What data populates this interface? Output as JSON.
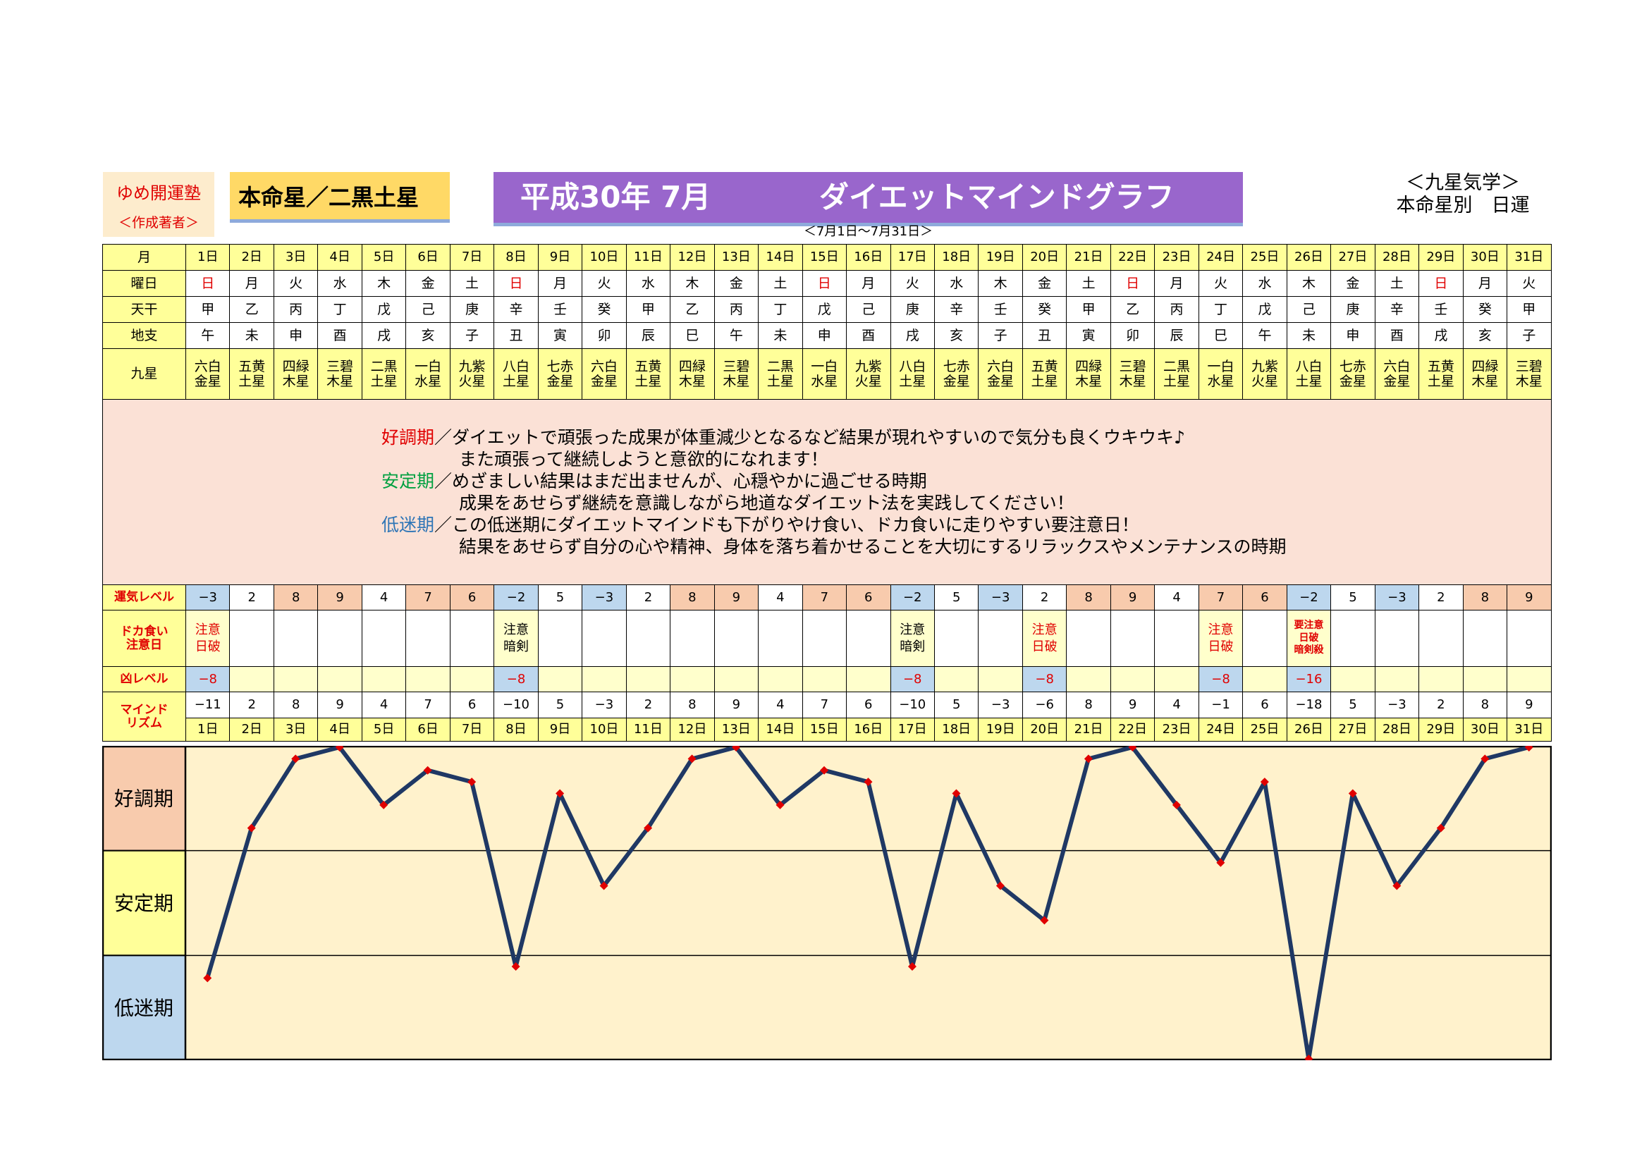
{
  "header": {
    "brand_name": "ゆめ開運塾",
    "brand_sub": "＜作成著者＞",
    "honmeisei": "本命星／二黒土星",
    "title_year": "平成30年 7月",
    "title_graph": "ダイエットマインドグラフ",
    "date_range": "＜7月1日～7月31日＞",
    "kyusei_title": "＜九星気学＞",
    "kyusei_sub": "本命星別　日運"
  },
  "row_labels": {
    "month": "月",
    "weekday": "曜日",
    "tenkan": "天干",
    "chishi": "地支",
    "kyusei": "九星",
    "unki_level": "運気レベル",
    "doka_1": "ドカ食い",
    "doka_2": "注意日",
    "kyo_level": "凶レベル",
    "mind_1": "マインド",
    "mind_2": "リズム"
  },
  "days": [
    "1日",
    "2日",
    "3日",
    "4日",
    "5日",
    "6日",
    "7日",
    "8日",
    "9日",
    "10日",
    "11日",
    "12日",
    "13日",
    "14日",
    "15日",
    "16日",
    "17日",
    "18日",
    "19日",
    "20日",
    "21日",
    "22日",
    "23日",
    "24日",
    "25日",
    "26日",
    "27日",
    "28日",
    "29日",
    "30日",
    "31日"
  ],
  "weekdays": [
    "日",
    "月",
    "火",
    "水",
    "木",
    "金",
    "土",
    "日",
    "月",
    "火",
    "水",
    "木",
    "金",
    "土",
    "日",
    "月",
    "火",
    "水",
    "木",
    "金",
    "土",
    "日",
    "月",
    "火",
    "水",
    "木",
    "金",
    "土",
    "日",
    "月",
    "火"
  ],
  "tenkan": [
    "甲",
    "乙",
    "丙",
    "丁",
    "戊",
    "己",
    "庚",
    "辛",
    "壬",
    "癸",
    "甲",
    "乙",
    "丙",
    "丁",
    "戊",
    "己",
    "庚",
    "辛",
    "壬",
    "癸",
    "甲",
    "乙",
    "丙",
    "丁",
    "戊",
    "己",
    "庚",
    "辛",
    "壬",
    "癸",
    "甲"
  ],
  "chishi": [
    "午",
    "未",
    "申",
    "酉",
    "戌",
    "亥",
    "子",
    "丑",
    "寅",
    "卯",
    "辰",
    "巳",
    "午",
    "未",
    "申",
    "酉",
    "戌",
    "亥",
    "子",
    "丑",
    "寅",
    "卯",
    "辰",
    "巳",
    "午",
    "未",
    "申",
    "酉",
    "戌",
    "亥",
    "子"
  ],
  "kyusei_top": [
    "六白",
    "五黄",
    "四緑",
    "三碧",
    "二黒",
    "一白",
    "九紫",
    "八白",
    "七赤",
    "六白",
    "五黄",
    "四緑",
    "三碧",
    "二黒",
    "一白",
    "九紫",
    "八白",
    "七赤",
    "六白",
    "五黄",
    "四緑",
    "三碧",
    "二黒",
    "一白",
    "九紫",
    "八白",
    "七赤",
    "六白",
    "五黄",
    "四緑",
    "三碧"
  ],
  "kyusei_bottom": [
    "金星",
    "土星",
    "木星",
    "木星",
    "土星",
    "水星",
    "火星",
    "土星",
    "金星",
    "金星",
    "土星",
    "木星",
    "木星",
    "土星",
    "水星",
    "火星",
    "土星",
    "金星",
    "金星",
    "土星",
    "木星",
    "木星",
    "土星",
    "水星",
    "火星",
    "土星",
    "金星",
    "金星",
    "土星",
    "木星",
    "木星"
  ],
  "description": {
    "good_label": "好調期",
    "good_text": "／ダイエットで頑張った成果が体重減少となるなど結果が現れやすいので気分も良くウキウキ♪",
    "good_text2": "また頑張って継続しようと意欲的になれます！",
    "stable_label": "安定期",
    "stable_text": "／めざましい結果はまだ出ませんが、心穏やかに過ごせる時期",
    "stable_text2": "成果をあせらず継続を意識しながら地道なダイエット法を実践してください！",
    "low_label": "低迷期",
    "low_text": "／この低迷期にダイエットマインドも下がりやけ食い、ドカ食いに走りやすい要注意日！",
    "low_text2": "結果をあせらず自分の心や精神、身体を落ち着かせることを大切にするリラックスやメンテナンスの時期"
  },
  "unki_level": [
    "−3",
    "2",
    "8",
    "9",
    "4",
    "7",
    "6",
    "−2",
    "5",
    "−3",
    "2",
    "8",
    "9",
    "4",
    "7",
    "6",
    "−2",
    "5",
    "−3",
    "2",
    "8",
    "9",
    "4",
    "7",
    "6",
    "−2",
    "5",
    "−3",
    "2",
    "8",
    "9"
  ],
  "doka_notes": [
    {
      "day": 1,
      "lines": [
        "注意",
        "日破"
      ],
      "color": "#e00000"
    },
    {
      "day": 8,
      "lines": [
        "注意",
        "暗剣"
      ],
      "color": "#000000"
    },
    {
      "day": 17,
      "lines": [
        "注意",
        "暗剣"
      ],
      "color": "#000000"
    },
    {
      "day": 20,
      "lines": [
        "注意",
        "日破"
      ],
      "color": "#e00000"
    },
    {
      "day": 24,
      "lines": [
        "注意",
        "日破"
      ],
      "color": "#e00000"
    },
    {
      "day": 26,
      "lines": [
        "要注意",
        "日破",
        "暗剣殺"
      ],
      "color": "#e00000"
    }
  ],
  "kyo_level": {
    "1": "−8",
    "8": "−8",
    "17": "−8",
    "20": "−8",
    "24": "−8",
    "26": "−16"
  },
  "mind_rhythm_labels": [
    "−11",
    "2",
    "8",
    "9",
    "4",
    "7",
    "6",
    "−10",
    "5",
    "−3",
    "2",
    "8",
    "9",
    "4",
    "7",
    "6",
    "−10",
    "5",
    "−3",
    "−6",
    "8",
    "9",
    "4",
    "−1",
    "6",
    "−18",
    "5",
    "−3",
    "2",
    "8",
    "9"
  ],
  "chart_data": {
    "type": "line",
    "x": [
      "1日",
      "2日",
      "3日",
      "4日",
      "5日",
      "6日",
      "7日",
      "8日",
      "9日",
      "10日",
      "11日",
      "12日",
      "13日",
      "14日",
      "15日",
      "16日",
      "17日",
      "18日",
      "19日",
      "20日",
      "21日",
      "22日",
      "23日",
      "24日",
      "25日",
      "26日",
      "27日",
      "28日",
      "29日",
      "30日",
      "31日"
    ],
    "values": [
      -11,
      2,
      8,
      9,
      4,
      7,
      6,
      -10,
      5,
      -3,
      2,
      8,
      9,
      4,
      7,
      6,
      -10,
      5,
      -3,
      -6,
      8,
      9,
      4,
      -1,
      6,
      -18,
      5,
      -3,
      2,
      8,
      9
    ],
    "ylim": [
      -18,
      9
    ],
    "bands": [
      {
        "label": "好調期",
        "color": "#f8cbad"
      },
      {
        "label": "安定期",
        "color": "#ffff99"
      },
      {
        "label": "低迷期",
        "color": "#bdd7ee"
      }
    ],
    "line_color": "#1f3864",
    "marker_color": "#e00000",
    "plot_bg": "#fff2cc"
  }
}
